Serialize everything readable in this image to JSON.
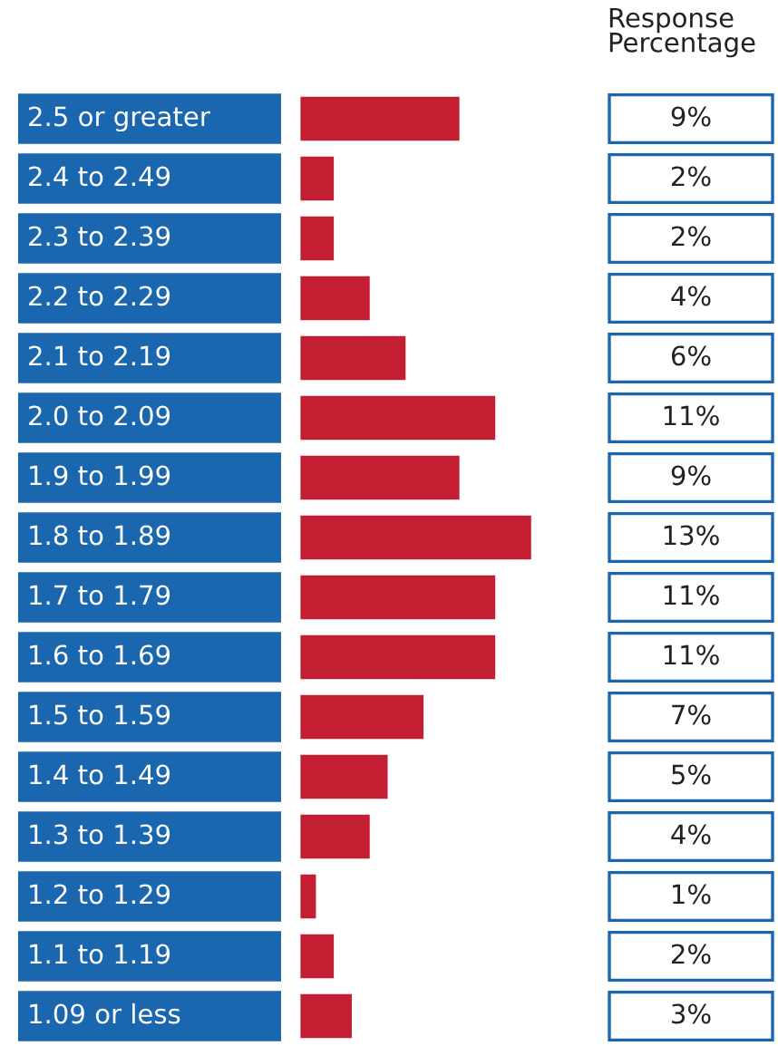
{
  "chart_data": {
    "type": "bar",
    "orientation": "horizontal",
    "categories": [
      "2.5 or greater",
      "2.4 to 2.49",
      "2.3 to 2.39",
      "2.2 to 2.29",
      "2.1 to 2.19",
      "2.0 to 2.09",
      "1.9 to 1.99",
      "1.8 to 1.89",
      "1.7 to 1.79",
      "1.6 to 1.69",
      "1.5 to 1.59",
      "1.4 to 1.49",
      "1.3 to 1.39",
      "1.2 to 1.29",
      "1.1 to 1.19",
      "1.09 or less"
    ],
    "values": [
      9,
      2,
      2,
      4,
      6,
      11,
      9,
      13,
      11,
      11,
      7,
      5,
      4,
      1,
      2,
      3
    ],
    "value_labels": [
      "9%",
      "2%",
      "2%",
      "4%",
      "6%",
      "11%",
      "9%",
      "13%",
      "11%",
      "11%",
      "7%",
      "5%",
      "4%",
      "1%",
      "2%",
      "3%"
    ],
    "color": "#c41e32",
    "annotations": [
      "Response\nPercentage"
    ]
  }
}
